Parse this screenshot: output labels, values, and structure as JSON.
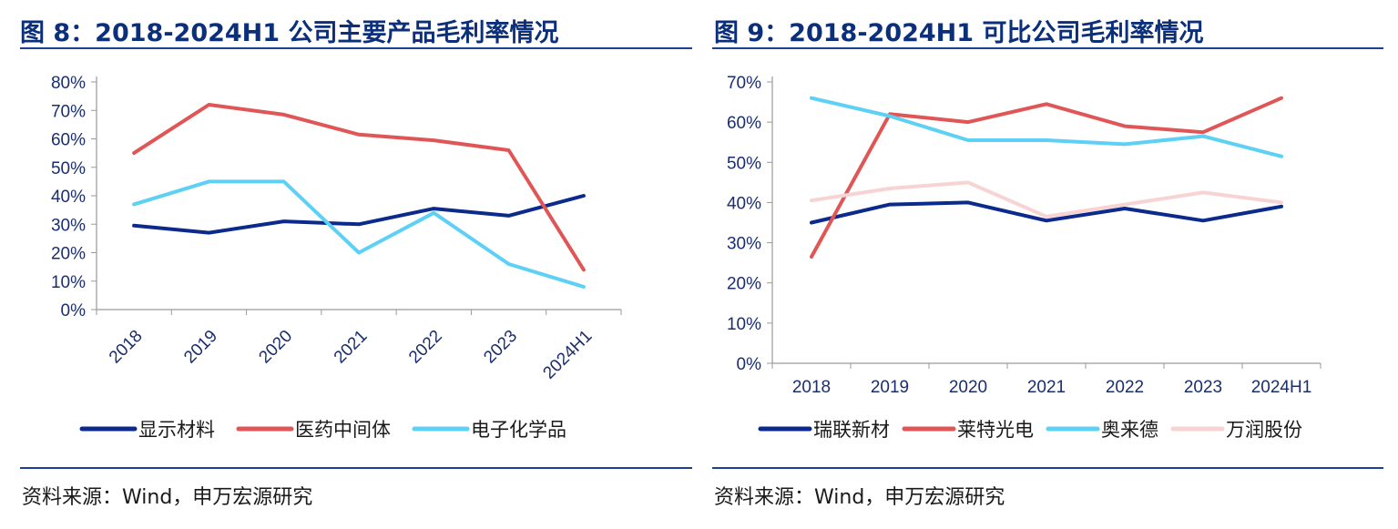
{
  "left": {
    "title": "图 8：2018-2024H1 公司主要产品毛利率情况",
    "source": "资料来源：Wind，申万宏源研究"
  },
  "right": {
    "title": "图 9：2018-2024H1 可比公司毛利率情况",
    "source": "资料来源：Wind，申万宏源研究"
  },
  "chart_data": [
    {
      "type": "line",
      "title": "图 8：2018-2024H1 公司主要产品毛利率情况",
      "categories": [
        "2018",
        "2019",
        "2020",
        "2021",
        "2022",
        "2023",
        "2024H1"
      ],
      "y_ticks": [
        "0%",
        "10%",
        "20%",
        "30%",
        "40%",
        "50%",
        "60%",
        "70%",
        "80%"
      ],
      "ylim": [
        0,
        80
      ],
      "x_tick_rotation": "rotated",
      "legend_position": "bottom",
      "series": [
        {
          "name": "显示材料",
          "color": "#0b2a8c",
          "values": [
            29.5,
            27,
            31,
            30,
            35.5,
            33,
            40
          ]
        },
        {
          "name": "医药中间体",
          "color": "#e05656",
          "values": [
            55,
            72,
            68.5,
            61.5,
            59.5,
            56,
            14
          ]
        },
        {
          "name": "电子化学品",
          "color": "#5dd0f5",
          "values": [
            37,
            45,
            45,
            20,
            34,
            16,
            8
          ]
        }
      ]
    },
    {
      "type": "line",
      "title": "图 9：2018-2024H1 可比公司毛利率情况",
      "categories": [
        "2018",
        "2019",
        "2020",
        "2021",
        "2022",
        "2023",
        "2024H1"
      ],
      "y_ticks": [
        "0%",
        "10%",
        "20%",
        "30%",
        "40%",
        "50%",
        "60%",
        "70%"
      ],
      "ylim": [
        0,
        70
      ],
      "x_tick_rotation": "none",
      "legend_position": "bottom",
      "series": [
        {
          "name": "瑞联新材",
          "color": "#0b2a8c",
          "values": [
            35,
            39.5,
            40,
            35.5,
            38.5,
            35.5,
            39
          ]
        },
        {
          "name": "莱特光电",
          "color": "#e05656",
          "values": [
            26.5,
            62,
            60,
            64.5,
            59,
            57.5,
            66
          ]
        },
        {
          "name": "奥来德",
          "color": "#5dd0f5",
          "values": [
            66,
            61.5,
            55.5,
            55.5,
            54.5,
            56.5,
            51.5
          ]
        },
        {
          "name": "万润股份",
          "color": "#f8d3d3",
          "values": [
            40.5,
            43.5,
            45,
            36.5,
            39.5,
            42.5,
            40
          ]
        }
      ]
    }
  ]
}
